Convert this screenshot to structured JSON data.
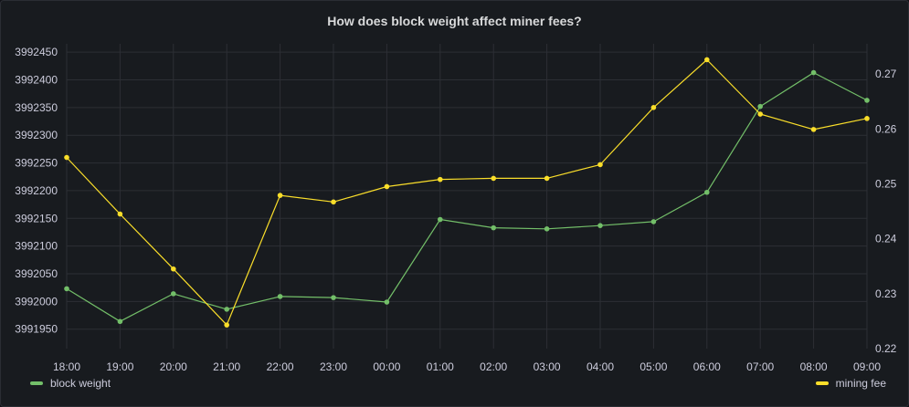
{
  "chart_data": {
    "type": "line",
    "title": "How does block weight affect miner fees?",
    "x": [
      "18:00",
      "19:00",
      "20:00",
      "21:00",
      "22:00",
      "23:00",
      "00:00",
      "01:00",
      "02:00",
      "03:00",
      "04:00",
      "05:00",
      "06:00",
      "07:00",
      "08:00",
      "09:00"
    ],
    "y_left": {
      "ticks": [
        "3991950",
        "3992000",
        "3992050",
        "3992100",
        "3992150",
        "3992200",
        "3992250",
        "3992300",
        "3992350",
        "3992400",
        "3992450"
      ],
      "range": [
        3991915,
        3992465
      ]
    },
    "y_right": {
      "ticks": [
        "0.22",
        "0.23",
        "0.24",
        "0.25",
        "0.26",
        "0.27"
      ],
      "range": [
        0.22,
        0.2755
      ]
    },
    "series": [
      {
        "name": "block weight",
        "axis": "left",
        "color": "#73bf69",
        "values": [
          3992023,
          3991964,
          3992014,
          3991986,
          3992009,
          3992007,
          3991999,
          3992148,
          3992133,
          3992131,
          3992137,
          3992144,
          3992197,
          3992352,
          3992413,
          3992363
        ]
      },
      {
        "name": "mining fee",
        "axis": "right",
        "color": "#fade2a",
        "values": [
          0.2548,
          0.2445,
          0.2345,
          0.2243,
          0.2479,
          0.2467,
          0.2495,
          0.2508,
          0.251,
          0.251,
          0.2535,
          0.2639,
          0.2726,
          0.2627,
          0.2599,
          0.2619
        ]
      }
    ],
    "grid": true,
    "legend": [
      "bottom-left",
      "bottom-right"
    ]
  }
}
